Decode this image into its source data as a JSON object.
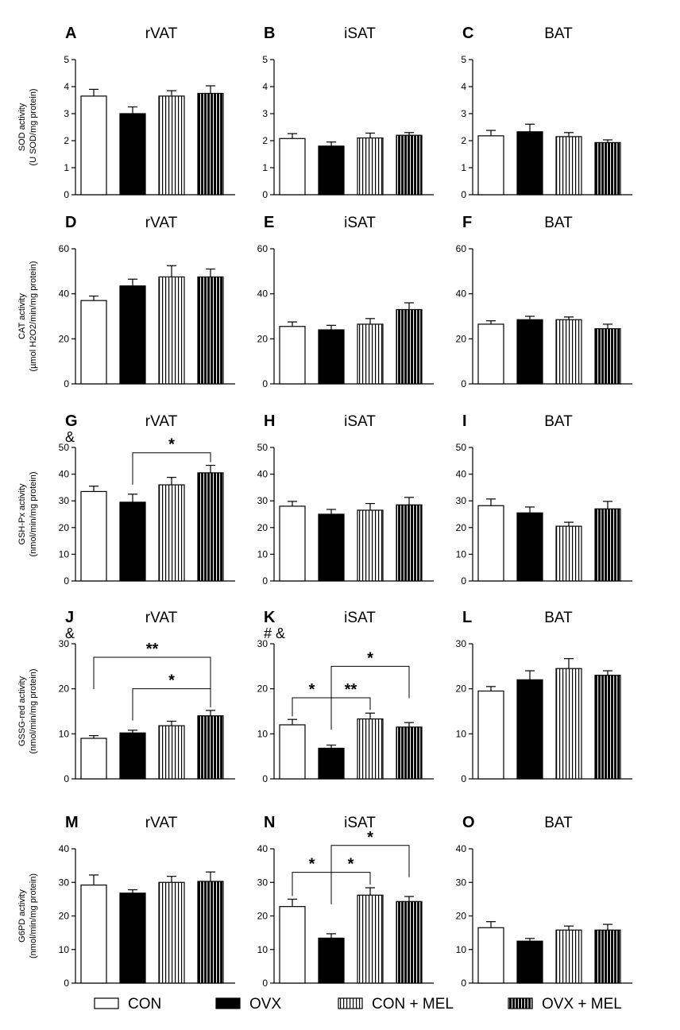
{
  "legend": [
    {
      "label": "CON",
      "pattern": "white"
    },
    {
      "label": "OVX",
      "pattern": "black"
    },
    {
      "label": "CON + MEL",
      "pattern": "vlines"
    },
    {
      "label": "OVX + MEL",
      "pattern": "dense"
    }
  ],
  "chart_data": [
    {
      "type": "bar",
      "panel": "A",
      "title": "rVAT",
      "ylabel": "SOD activity",
      "ylabel2": "(U SOD/mg protein)",
      "ylim": [
        0,
        5
      ],
      "yticks": [
        0,
        1,
        2,
        3,
        4,
        5
      ],
      "categories": [
        "CON",
        "OVX",
        "CON + MEL",
        "OVX + MEL"
      ],
      "values": [
        3.65,
        3.0,
        3.65,
        3.75
      ],
      "errors": [
        0.25,
        0.25,
        0.2,
        0.28
      ],
      "marks": [],
      "brackets": []
    },
    {
      "type": "bar",
      "panel": "B",
      "title": "iSAT",
      "ylim": [
        0,
        5
      ],
      "yticks": [
        0,
        1,
        2,
        3,
        4,
        5
      ],
      "categories": [
        "CON",
        "OVX",
        "CON + MEL",
        "OVX + MEL"
      ],
      "values": [
        2.08,
        1.8,
        2.1,
        2.2
      ],
      "errors": [
        0.18,
        0.15,
        0.18,
        0.1
      ],
      "marks": [],
      "brackets": []
    },
    {
      "type": "bar",
      "panel": "C",
      "title": "BAT",
      "ylim": [
        0,
        5
      ],
      "yticks": [
        0,
        1,
        2,
        3,
        4,
        5
      ],
      "categories": [
        "CON",
        "OVX",
        "CON + MEL",
        "OVX + MEL"
      ],
      "values": [
        2.18,
        2.33,
        2.15,
        1.93
      ],
      "errors": [
        0.2,
        0.28,
        0.15,
        0.1
      ],
      "marks": [],
      "brackets": []
    },
    {
      "type": "bar",
      "panel": "D",
      "title": "rVAT",
      "ylabel": "CAT activity",
      "ylabel2": "(µmol H2O2/min/mg protein)",
      "ylim": [
        0,
        60
      ],
      "yticks": [
        0,
        20,
        40,
        60
      ],
      "categories": [
        "CON",
        "OVX",
        "CON + MEL",
        "OVX + MEL"
      ],
      "values": [
        37,
        43.5,
        47.5,
        47.5
      ],
      "errors": [
        2,
        3,
        5,
        3.5
      ],
      "marks": [],
      "brackets": []
    },
    {
      "type": "bar",
      "panel": "E",
      "title": "iSAT",
      "ylim": [
        0,
        60
      ],
      "yticks": [
        0,
        20,
        40,
        60
      ],
      "categories": [
        "CON",
        "OVX",
        "CON + MEL",
        "OVX + MEL"
      ],
      "values": [
        25.5,
        24,
        26.5,
        33
      ],
      "errors": [
        2,
        2,
        2.5,
        3
      ],
      "marks": [],
      "brackets": []
    },
    {
      "type": "bar",
      "panel": "F",
      "title": "BAT",
      "ylim": [
        0,
        60
      ],
      "yticks": [
        0,
        20,
        40,
        60
      ],
      "categories": [
        "CON",
        "OVX",
        "CON + MEL",
        "OVX + MEL"
      ],
      "values": [
        26.5,
        28.5,
        28.5,
        24.5
      ],
      "errors": [
        1.5,
        1.5,
        1.2,
        2
      ],
      "marks": [],
      "brackets": []
    },
    {
      "type": "bar",
      "panel": "G",
      "title": "rVAT",
      "ylabel": "GSH-Px activity",
      "ylabel2": "(nmol/min/mg protein)",
      "ylim": [
        0,
        50
      ],
      "yticks": [
        0,
        10,
        20,
        30,
        40,
        50
      ],
      "categories": [
        "CON",
        "OVX",
        "CON + MEL",
        "OVX + MEL"
      ],
      "values": [
        33.5,
        29.5,
        36,
        40.5
      ],
      "errors": [
        2,
        3,
        2.8,
        2.8
      ],
      "marks": [
        "&"
      ],
      "brackets": [
        {
          "from": 1,
          "to": 3,
          "level": 48,
          "label": "*"
        }
      ]
    },
    {
      "type": "bar",
      "panel": "H",
      "title": "iSAT",
      "ylim": [
        0,
        50
      ],
      "yticks": [
        0,
        10,
        20,
        30,
        40,
        50
      ],
      "categories": [
        "CON",
        "OVX",
        "CON + MEL",
        "OVX + MEL"
      ],
      "values": [
        28,
        25,
        26.5,
        28.5
      ],
      "errors": [
        1.8,
        1.8,
        2.5,
        2.8
      ],
      "marks": [],
      "brackets": []
    },
    {
      "type": "bar",
      "panel": "I",
      "title": "BAT",
      "ylim": [
        0,
        50
      ],
      "yticks": [
        0,
        10,
        20,
        30,
        40,
        50
      ],
      "categories": [
        "CON",
        "OVX",
        "CON + MEL",
        "OVX + MEL"
      ],
      "values": [
        28.2,
        25.5,
        20.5,
        27
      ],
      "errors": [
        2.5,
        2.2,
        1.5,
        2.8
      ],
      "marks": [],
      "brackets": []
    },
    {
      "type": "bar",
      "panel": "J",
      "title": "rVAT",
      "ylabel": "GSSG-red activity",
      "ylabel2": "(nmol/min/mg protein)",
      "ylim": [
        0,
        30
      ],
      "yticks": [
        0,
        10,
        20,
        30
      ],
      "categories": [
        "CON",
        "OVX",
        "CON + MEL",
        "OVX + MEL"
      ],
      "values": [
        9,
        10.2,
        11.8,
        14
      ],
      "errors": [
        0.6,
        0.6,
        1,
        1.2
      ],
      "marks": [
        "&"
      ],
      "brackets": [
        {
          "from": 0,
          "to": 3,
          "level": 27,
          "label": "**"
        },
        {
          "from": 1,
          "to": 3,
          "level": 20,
          "label": "*"
        }
      ]
    },
    {
      "type": "bar",
      "panel": "K",
      "title": "iSAT",
      "ylim": [
        0,
        30
      ],
      "yticks": [
        0,
        10,
        20,
        30
      ],
      "categories": [
        "CON",
        "OVX",
        "CON + MEL",
        "OVX + MEL"
      ],
      "values": [
        12,
        6.8,
        13.3,
        11.5
      ],
      "errors": [
        1.2,
        0.7,
        1.3,
        1
      ],
      "marks": [
        "#",
        "&"
      ],
      "brackets": [
        {
          "from": 0,
          "to": 1,
          "level": 18,
          "label": "*"
        },
        {
          "from": 1,
          "to": 2,
          "level": 18,
          "label": "**"
        },
        {
          "from": 1,
          "to": 3,
          "level": 25,
          "label": "*"
        }
      ]
    },
    {
      "type": "bar",
      "panel": "L",
      "title": "BAT",
      "ylim": [
        0,
        30
      ],
      "yticks": [
        0,
        10,
        20,
        30
      ],
      "categories": [
        "CON",
        "OVX",
        "CON + MEL",
        "OVX + MEL"
      ],
      "values": [
        19.5,
        22,
        24.5,
        23
      ],
      "errors": [
        1,
        2,
        2.2,
        1
      ],
      "marks": [],
      "brackets": []
    },
    {
      "type": "bar",
      "panel": "M",
      "title": "rVAT",
      "ylabel": "G6PD activity",
      "ylabel2": "(nmol/min/mg protein)",
      "ylim": [
        0,
        40
      ],
      "yticks": [
        0,
        10,
        20,
        30,
        40
      ],
      "categories": [
        "CON",
        "OVX",
        "CON + MEL",
        "OVX + MEL"
      ],
      "values": [
        29.2,
        26.8,
        30,
        30.3
      ],
      "errors": [
        3,
        1,
        1.8,
        2.8
      ],
      "marks": [],
      "brackets": []
    },
    {
      "type": "bar",
      "panel": "N",
      "title": "iSAT",
      "ylim": [
        0,
        40
      ],
      "yticks": [
        0,
        10,
        20,
        30,
        40
      ],
      "categories": [
        "CON",
        "OVX",
        "CON + MEL",
        "OVX + MEL"
      ],
      "values": [
        22.8,
        13.4,
        26.2,
        24.3
      ],
      "errors": [
        2.2,
        1.3,
        2.2,
        1.5
      ],
      "marks": [],
      "brackets": [
        {
          "from": 0,
          "to": 1,
          "level": 33,
          "label": "*"
        },
        {
          "from": 1,
          "to": 2,
          "level": 33,
          "label": "*"
        },
        {
          "from": 1,
          "to": 3,
          "level": 41,
          "label": "*"
        }
      ]
    },
    {
      "type": "bar",
      "panel": "O",
      "title": "BAT",
      "ylim": [
        0,
        40
      ],
      "yticks": [
        0,
        10,
        20,
        30,
        40
      ],
      "categories": [
        "CON",
        "OVX",
        "CON + MEL",
        "OVX + MEL"
      ],
      "values": [
        16.5,
        12.5,
        15.8,
        15.8
      ],
      "errors": [
        1.8,
        0.8,
        1.2,
        1.7
      ],
      "marks": [],
      "brackets": []
    }
  ]
}
